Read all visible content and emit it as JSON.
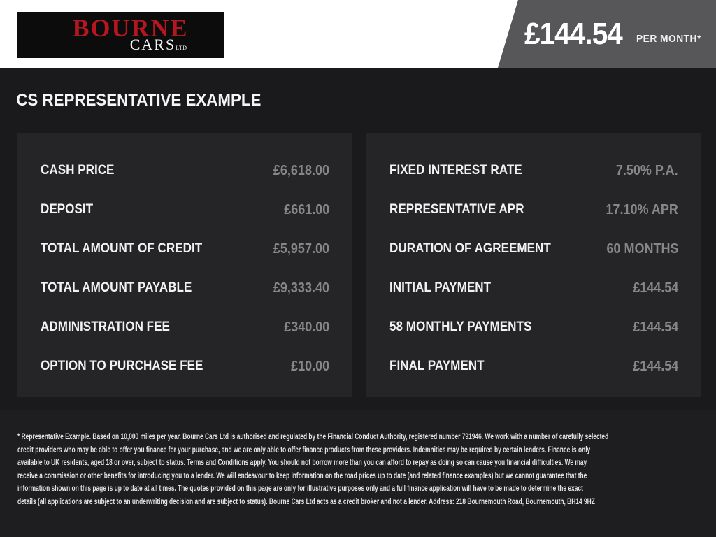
{
  "header": {
    "logo": {
      "primary": "BOURNE",
      "secondary": "CARS",
      "suffix": "LTD"
    },
    "price": {
      "amount": "£144.54",
      "period": "PER MONTH*"
    }
  },
  "main": {
    "title": "CS REPRESENTATIVE EXAMPLE",
    "left_panel": {
      "rows": [
        {
          "label": "CASH PRICE",
          "value": "£6,618.00"
        },
        {
          "label": "DEPOSIT",
          "value": "£661.00"
        },
        {
          "label": "TOTAL AMOUNT OF CREDIT",
          "value": "£5,957.00"
        },
        {
          "label": "TOTAL AMOUNT PAYABLE",
          "value": "£9,333.40"
        },
        {
          "label": "ADMINISTRATION FEE",
          "value": "£340.00"
        },
        {
          "label": "OPTION TO PURCHASE FEE",
          "value": "£10.00"
        }
      ]
    },
    "right_panel": {
      "rows": [
        {
          "label": "FIXED INTEREST RATE",
          "value": "7.50% P.A."
        },
        {
          "label": "REPRESENTATIVE APR",
          "value": "17.10% APR"
        },
        {
          "label": "DURATION OF AGREEMENT",
          "value": "60 MONTHS"
        },
        {
          "label": "INITIAL PAYMENT",
          "value": "£144.54"
        },
        {
          "label": "58 MONTHLY PAYMENTS",
          "value": "£144.54"
        },
        {
          "label": "FINAL PAYMENT",
          "value": "£144.54"
        }
      ]
    }
  },
  "footer": {
    "lines": [
      "* Representative Example. Based on 10,000 miles per year. Bourne Cars Ltd is authorised and regulated by the Financial Conduct Authority, registered number 791946. We work with a number of carefully selected",
      "credit providers who may be able to offer you finance for your purchase, and we are only able to offer finance products from these providers. Indemnities may be required by certain lenders. Finance is only",
      "available to UK residents, aged 18 or over, subject to status. Terms and Conditions apply. You should not borrow more than you can afford to repay as doing so can cause you financial difficulties. We may",
      "receive a commission or other benefits for introducing you to a lender. We will endeavour to keep information on the road prices up to date (and related finance examples) but we cannot guarantee that the",
      "information shown on this page is up to date at all times. The quotes provided on this page are only for illustrative purposes only and a full finance application will have to be made to determine the exact",
      "details (all applications are subject to an underwriting decision and are subject to status). Bourne Cars Ltd acts as a credit broker and not a lender. Address: 218 Bournemouth Road, Bournemouth, BH14 9HZ"
    ]
  },
  "colors": {
    "accent_red": "#b5161f",
    "header_flag_gray": "#57575a",
    "page_bg": "#1a1a1c",
    "panel_bg": "#252528",
    "value_gray": "#87878a"
  }
}
